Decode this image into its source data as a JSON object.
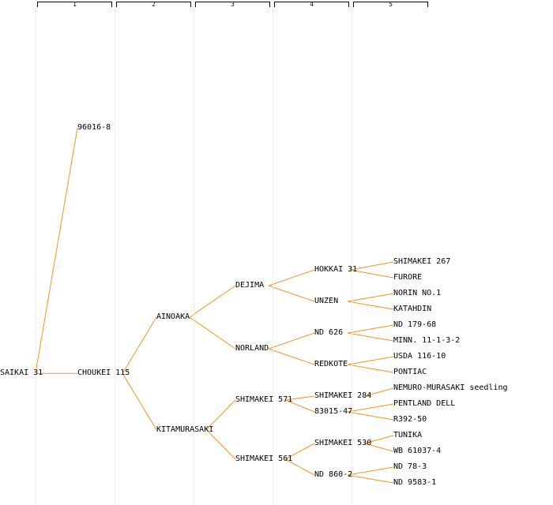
{
  "edge_color": "#f29424",
  "generation_labels": [
    "1",
    "2",
    "3",
    "4",
    "5"
  ],
  "nodes": [
    {
      "id": "n0",
      "label": "SAIKAI 31",
      "gen": 0
    },
    {
      "id": "n1",
      "label": "96016-8",
      "gen": 1
    },
    {
      "id": "n2",
      "label": "CHOUKEI 115",
      "gen": 1
    },
    {
      "id": "n3",
      "label": "AINOAKA",
      "gen": 2
    },
    {
      "id": "n4",
      "label": "KITAMURASAKI",
      "gen": 2
    },
    {
      "id": "n5",
      "label": "DEJIMA",
      "gen": 3
    },
    {
      "id": "n6",
      "label": "NORLAND",
      "gen": 3
    },
    {
      "id": "n7",
      "label": "SHIMAKEI 571",
      "gen": 3
    },
    {
      "id": "n8",
      "label": "SHIMAKEI 561",
      "gen": 3
    },
    {
      "id": "n9",
      "label": "HOKKAI 31",
      "gen": 4
    },
    {
      "id": "n10",
      "label": "UNZEN",
      "gen": 4
    },
    {
      "id": "n11",
      "label": "ND 626",
      "gen": 4
    },
    {
      "id": "n12",
      "label": "REDKOTE",
      "gen": 4
    },
    {
      "id": "n13",
      "label": "SHIMAKEI 284",
      "gen": 4
    },
    {
      "id": "n14",
      "label": "83015-47",
      "gen": 4
    },
    {
      "id": "n15",
      "label": "SHIMAKEI 530",
      "gen": 4
    },
    {
      "id": "n16",
      "label": "ND 860-2",
      "gen": 4
    },
    {
      "id": "n17",
      "label": "SHIMAKEI 267",
      "gen": 5
    },
    {
      "id": "n18",
      "label": "FURORE",
      "gen": 5
    },
    {
      "id": "n19",
      "label": "NORIN NO.1",
      "gen": 5
    },
    {
      "id": "n20",
      "label": "KATAHDIN",
      "gen": 5
    },
    {
      "id": "n21",
      "label": "ND 179-68",
      "gen": 5
    },
    {
      "id": "n22",
      "label": "MINN. 11-1-3-2",
      "gen": 5
    },
    {
      "id": "n23",
      "label": "USDA 116-10",
      "gen": 5
    },
    {
      "id": "n24",
      "label": "PONTIAC",
      "gen": 5
    },
    {
      "id": "n25",
      "label": "NEMURO-MURASAKI seedling",
      "gen": 5
    },
    {
      "id": "n26",
      "label": "PENTLAND DELL",
      "gen": 5
    },
    {
      "id": "n27",
      "label": "R392-50",
      "gen": 5
    },
    {
      "id": "n28",
      "label": "TUNIKA",
      "gen": 5
    },
    {
      "id": "n29",
      "label": "WB 61037-4",
      "gen": 5
    },
    {
      "id": "n30",
      "label": "ND 78-3",
      "gen": 5
    },
    {
      "id": "n31",
      "label": "ND 9583-1",
      "gen": 5
    }
  ],
  "edges": [
    [
      "n0",
      "n1"
    ],
    [
      "n0",
      "n2"
    ],
    [
      "n2",
      "n3"
    ],
    [
      "n2",
      "n4"
    ],
    [
      "n3",
      "n5"
    ],
    [
      "n3",
      "n6"
    ],
    [
      "n4",
      "n7"
    ],
    [
      "n4",
      "n8"
    ],
    [
      "n5",
      "n9"
    ],
    [
      "n5",
      "n10"
    ],
    [
      "n6",
      "n11"
    ],
    [
      "n6",
      "n12"
    ],
    [
      "n7",
      "n13"
    ],
    [
      "n7",
      "n14"
    ],
    [
      "n8",
      "n15"
    ],
    [
      "n8",
      "n16"
    ],
    [
      "n9",
      "n17"
    ],
    [
      "n9",
      "n18"
    ],
    [
      "n10",
      "n19"
    ],
    [
      "n10",
      "n20"
    ],
    [
      "n11",
      "n21"
    ],
    [
      "n11",
      "n22"
    ],
    [
      "n12",
      "n23"
    ],
    [
      "n12",
      "n24"
    ],
    [
      "n13",
      "n25"
    ],
    [
      "n14",
      "n26"
    ],
    [
      "n14",
      "n27"
    ],
    [
      "n15",
      "n28"
    ],
    [
      "n15",
      "n29"
    ],
    [
      "n16",
      "n30"
    ],
    [
      "n16",
      "n31"
    ]
  ]
}
